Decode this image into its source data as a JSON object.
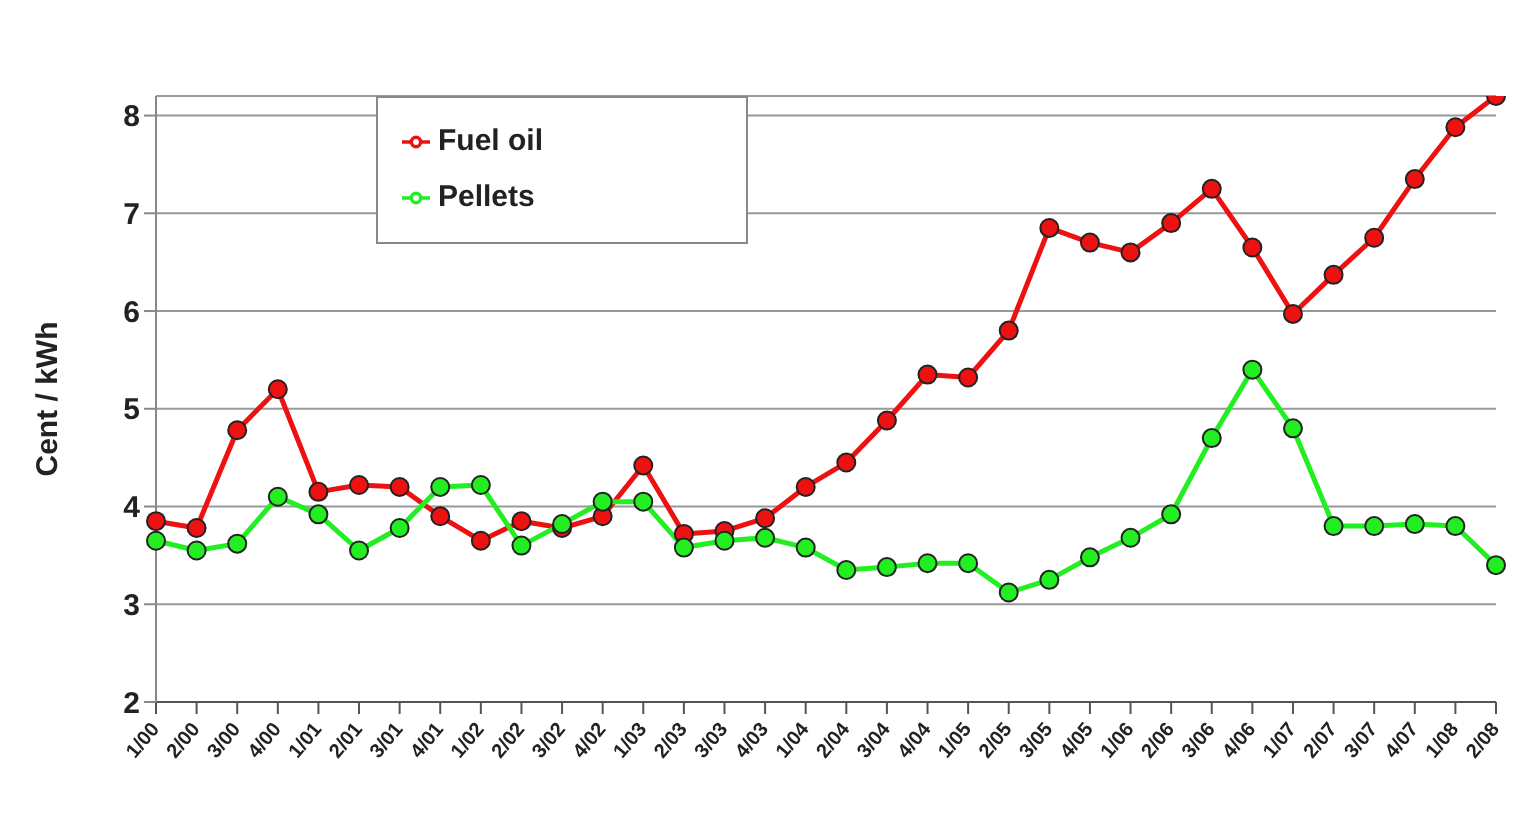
{
  "chart_data": {
    "type": "line",
    "ylabel": "Cent / kWh",
    "categories": [
      "1/00",
      "2/00",
      "3/00",
      "4/00",
      "1/01",
      "2/01",
      "3/01",
      "4/01",
      "1/02",
      "2/02",
      "3/02",
      "4/02",
      "1/03",
      "2/03",
      "3/03",
      "4/03",
      "1/04",
      "2/04",
      "3/04",
      "4/04",
      "1/05",
      "2/05",
      "3/05",
      "4/05",
      "1/06",
      "2/06",
      "3/06",
      "4/06",
      "1/07",
      "2/07",
      "3/07",
      "4/07",
      "1/08",
      "2/08"
    ],
    "series": [
      {
        "name": "Fuel oil",
        "color": "#ee1111",
        "values": [
          3.85,
          3.78,
          4.78,
          5.2,
          4.15,
          4.22,
          4.2,
          3.9,
          3.65,
          3.85,
          3.78,
          3.9,
          4.42,
          3.72,
          3.75,
          3.88,
          4.2,
          4.45,
          4.88,
          5.35,
          5.32,
          5.8,
          6.85,
          6.7,
          6.6,
          6.9,
          7.25,
          6.65,
          5.97,
          6.37,
          6.75,
          7.35,
          7.88,
          8.2
        ]
      },
      {
        "name": "Pellets",
        "color": "#22ee22",
        "values": [
          3.65,
          3.55,
          3.62,
          4.1,
          3.92,
          3.55,
          3.78,
          4.2,
          4.22,
          3.6,
          3.82,
          4.05,
          4.05,
          3.58,
          3.65,
          3.68,
          3.58,
          3.35,
          3.38,
          3.42,
          3.42,
          3.12,
          3.25,
          3.48,
          3.68,
          3.92,
          4.7,
          5.4,
          4.8,
          3.8,
          3.8,
          3.82,
          3.8,
          3.4
        ]
      }
    ],
    "ylim": [
      2,
      8.2
    ],
    "yticks": [
      2,
      3,
      4,
      5,
      6,
      7,
      8
    ],
    "grid": "y",
    "legend": "top left",
    "marker": "circle",
    "line_style": "solid"
  }
}
